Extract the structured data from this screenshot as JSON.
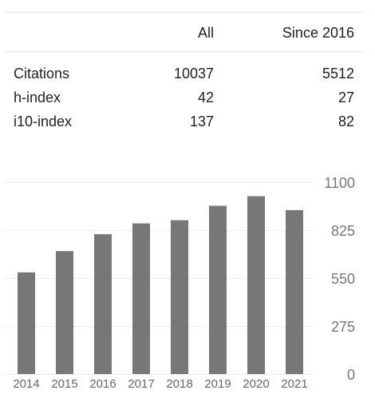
{
  "table": {
    "columns": [
      "All",
      "Since 2016"
    ],
    "rows": [
      {
        "label": "Citations",
        "all": "10037",
        "since": "5512"
      },
      {
        "label": "h-index",
        "all": "42",
        "since": "27"
      },
      {
        "label": "i10-index",
        "all": "137",
        "since": "82"
      }
    ]
  },
  "chart_data": {
    "type": "bar",
    "categories": [
      "2014",
      "2015",
      "2016",
      "2017",
      "2018",
      "2019",
      "2020",
      "2021"
    ],
    "values": [
      583,
      705,
      802,
      864,
      882,
      965,
      1020,
      940
    ],
    "ylim": [
      0,
      1100
    ],
    "yticks": [
      "0",
      "275",
      "550",
      "825",
      "1100"
    ],
    "bar_color": "#777777",
    "grid": true
  }
}
